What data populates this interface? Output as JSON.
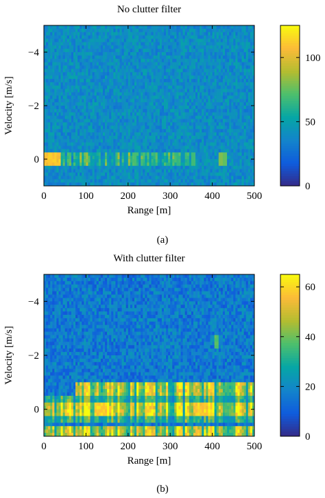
{
  "chart_data": [
    {
      "type": "heatmap",
      "title": "No clutter filter",
      "caption": "(a)",
      "xlabel": "Range [m]",
      "ylabel": "Velocity [m/s]",
      "xlim": [
        0,
        500
      ],
      "ylim": [
        -5,
        1
      ],
      "y_inverted": true,
      "xticks": [
        0,
        100,
        200,
        300,
        400,
        500
      ],
      "yticks": [
        -4,
        -2,
        0
      ],
      "ytick_labels": [
        "−4",
        "−2",
        "0"
      ],
      "colorbar": {
        "range": [
          0,
          125
        ],
        "ticks": [
          0,
          50,
          100
        ]
      },
      "background_level": 40,
      "noise_level": 12,
      "features": [
        {
          "kind": "hotspot",
          "range": [
            0,
            40
          ],
          "velocity": 0,
          "value": 115
        },
        {
          "kind": "band",
          "velocity": 0,
          "range": [
            40,
            350
          ],
          "value": 55
        },
        {
          "kind": "streak",
          "range": 215,
          "velocity": 0,
          "value": 70
        },
        {
          "kind": "streak",
          "range": 320,
          "velocity": 0,
          "value": 65
        },
        {
          "kind": "streak",
          "range": 355,
          "velocity": 0,
          "value": 68
        },
        {
          "kind": "streak",
          "range": 420,
          "velocity": 0,
          "value": 80
        },
        {
          "kind": "streak",
          "range": 430,
          "velocity": 0,
          "value": 75
        }
      ]
    },
    {
      "type": "heatmap",
      "title": "With clutter filter",
      "caption": "(b)",
      "xlabel": "Range [m]",
      "ylabel": "Velocity [m/s]",
      "xlim": [
        0,
        500
      ],
      "ylim": [
        -5,
        1
      ],
      "y_inverted": true,
      "xticks": [
        0,
        100,
        200,
        300,
        400,
        500
      ],
      "yticks": [
        -4,
        -2,
        0
      ],
      "ytick_labels": [
        "−4",
        "−2",
        "0"
      ],
      "colorbar": {
        "range": [
          0,
          65
        ],
        "ticks": [
          0,
          20,
          40,
          60
        ]
      },
      "background_level": 16,
      "noise_level": 8,
      "features": [
        {
          "kind": "band",
          "velocity": -0.75,
          "range": [
            75,
            500
          ],
          "value": 45
        },
        {
          "kind": "band",
          "velocity": 0,
          "range": [
            0,
            500
          ],
          "value": 48
        },
        {
          "kind": "band",
          "velocity": 0.3,
          "range": [
            0,
            500
          ],
          "value": 30
        },
        {
          "kind": "band",
          "velocity": -0.3,
          "range": [
            0,
            500
          ],
          "value": 30
        },
        {
          "kind": "band",
          "velocity": 0.8,
          "range": [
            0,
            500
          ],
          "value": 45
        },
        {
          "kind": "hotspot",
          "range": [
            120,
            150
          ],
          "velocity": 0,
          "value": 62
        },
        {
          "kind": "hotspot",
          "range": [
            360,
            400
          ],
          "velocity": 0,
          "value": 60
        },
        {
          "kind": "hotspot",
          "range": [
            405,
            415
          ],
          "velocity": -2.5,
          "value": 40
        }
      ]
    }
  ]
}
